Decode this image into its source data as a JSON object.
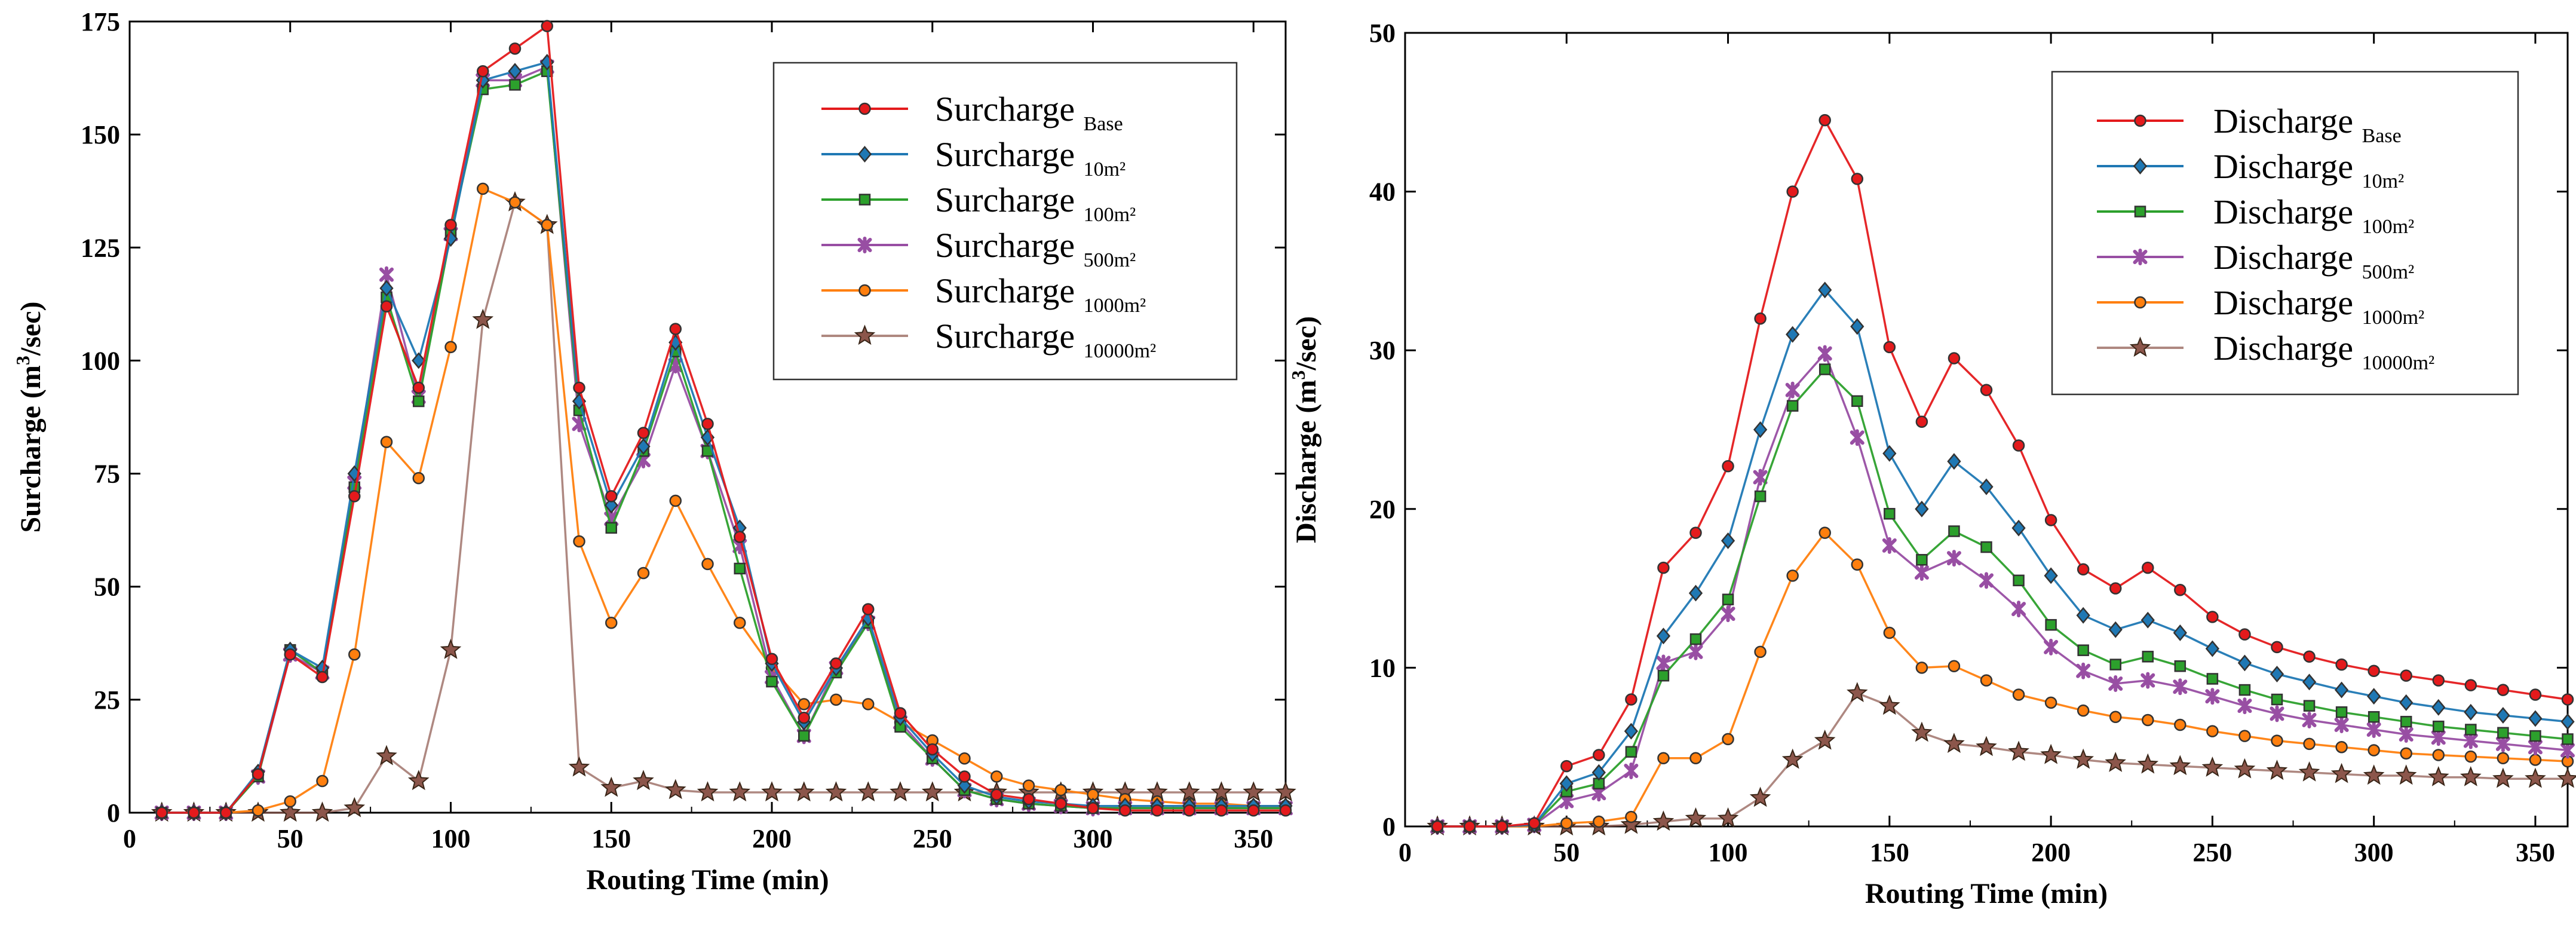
{
  "chart_data": [
    {
      "type": "line",
      "title": "",
      "xlabel": "Routing Time (min)",
      "ylabel": "Surcharge (m3/sec)",
      "ylabel_parts": {
        "pre": "Surcharge (m",
        "sup": "3",
        "post": "/sec)"
      },
      "xlim": [
        0,
        360
      ],
      "ylim": [
        0,
        175
      ],
      "xticks": [
        0,
        50,
        100,
        150,
        200,
        250,
        300,
        350
      ],
      "yticks": [
        0,
        25,
        50,
        75,
        100,
        125,
        150,
        175
      ],
      "grid": false,
      "legend_position": "top-right",
      "x": [
        10,
        20,
        30,
        40,
        50,
        60,
        70,
        80,
        90,
        100,
        110,
        120,
        130,
        140,
        150,
        160,
        170,
        180,
        190,
        200,
        210,
        220,
        230,
        240,
        250,
        260,
        270,
        280,
        290,
        300,
        310,
        320,
        330,
        340,
        350,
        360
      ],
      "series": [
        {
          "name": "Surcharge Base",
          "main": "Surcharge",
          "sub": "Base",
          "color": "#e41a1c",
          "marker": "circle",
          "values": [
            0,
            0,
            0,
            8.5,
            35,
            30,
            70,
            112,
            94,
            130,
            164,
            169,
            174,
            94,
            70,
            84,
            107,
            86,
            61,
            34,
            21,
            33,
            45,
            22,
            14,
            8,
            4,
            3,
            2,
            1,
            0.5,
            0.5,
            0.5,
            0.5,
            0.5,
            0.5
          ]
        },
        {
          "name": "Surcharge 10m2",
          "main": "Surcharge",
          "sub": "10m²",
          "color": "#1f78b4",
          "marker": "diamond",
          "values": [
            0,
            0,
            0,
            9,
            36,
            32,
            75,
            116,
            100,
            127,
            162,
            164,
            166,
            91,
            68,
            81,
            104,
            83,
            63,
            33,
            20,
            32,
            43,
            21,
            13,
            6,
            3.5,
            2.5,
            2,
            1.5,
            1.5,
            1.5,
            1.5,
            1.5,
            1.5,
            1.5
          ]
        },
        {
          "name": "Surcharge 100m2",
          "main": "Surcharge",
          "sub": "100m²",
          "color": "#2ca02c",
          "marker": "square",
          "values": [
            0,
            0,
            0,
            8,
            36,
            31,
            72,
            114,
            91,
            128,
            160,
            161,
            164,
            89,
            63,
            80,
            102,
            80,
            54,
            29,
            17,
            31,
            42,
            19,
            12,
            5,
            3,
            2,
            1.5,
            1,
            1,
            1,
            1,
            1,
            1,
            1
          ]
        },
        {
          "name": "Surcharge 500m2",
          "main": "Surcharge",
          "sub": "500m²",
          "color": "#984ea3",
          "marker": "x",
          "values": [
            0,
            0,
            0,
            8,
            35,
            31,
            73,
            119,
            92,
            128,
            162,
            162,
            165,
            86,
            65,
            78,
            99,
            80,
            59,
            30,
            17,
            32,
            42,
            20,
            12,
            5,
            3,
            2,
            1.5,
            1,
            1,
            1,
            1,
            1,
            1,
            1
          ]
        },
        {
          "name": "Surcharge 1000m2",
          "main": "Surcharge",
          "sub": "1000m²",
          "color": "#ff7f0e",
          "marker": "circle",
          "values": [
            0,
            0,
            0,
            0.5,
            2.5,
            7,
            35,
            82,
            74,
            103,
            138,
            135,
            130,
            60,
            42,
            53,
            69,
            55,
            42,
            32,
            24,
            25,
            24,
            20,
            16,
            12,
            8,
            6,
            5,
            4,
            3,
            2.5,
            2,
            2,
            1.5,
            1.5
          ]
        },
        {
          "name": "Surcharge 10000m2",
          "main": "Surcharge",
          "sub": "10000m²",
          "color": "#8c564b",
          "marker": "star",
          "values": [
            0,
            0,
            0,
            0,
            0,
            0,
            1,
            12.5,
            7,
            36,
            109,
            135,
            130,
            10,
            5.5,
            7,
            5,
            4.5,
            4.5,
            4.5,
            4.5,
            4.5,
            4.5,
            4.5,
            4.5,
            4.5,
            4.5,
            4.5,
            4.5,
            4.5,
            4.5,
            4.5,
            4.5,
            4.5,
            4.5,
            4.5
          ]
        }
      ]
    },
    {
      "type": "line",
      "title": "",
      "xlabel": "Routing Time (min)",
      "ylabel": "Discharge (m3/sec)",
      "ylabel_parts": {
        "pre": "Discharge (m",
        "sup": "3",
        "post": "/sec)"
      },
      "xlim": [
        0,
        360
      ],
      "ylim": [
        0,
        50
      ],
      "xticks": [
        0,
        50,
        100,
        150,
        200,
        250,
        300,
        350
      ],
      "yticks": [
        0,
        10,
        20,
        30,
        40,
        50
      ],
      "grid": false,
      "legend_position": "top-right",
      "x": [
        10,
        20,
        30,
        40,
        50,
        60,
        70,
        80,
        90,
        100,
        110,
        120,
        130,
        140,
        150,
        160,
        170,
        180,
        190,
        200,
        210,
        220,
        230,
        240,
        250,
        260,
        270,
        280,
        290,
        300,
        310,
        320,
        330,
        340,
        350,
        360
      ],
      "series": [
        {
          "name": "Discharge Base",
          "main": "Discharge",
          "sub": "Base",
          "color": "#e41a1c",
          "marker": "circle",
          "values": [
            0,
            0,
            0,
            0.2,
            3.8,
            4.5,
            8,
            16.3,
            18.5,
            22.7,
            32,
            40,
            44.5,
            40.8,
            30.2,
            25.5,
            29.5,
            27.5,
            24,
            19.3,
            16.2,
            15,
            16.3,
            14.9,
            13.2,
            12.1,
            11.3,
            10.7,
            10.2,
            9.8,
            9.5,
            9.2,
            8.9,
            8.6,
            8.3,
            8
          ]
        },
        {
          "name": "Discharge 10m2",
          "main": "Discharge",
          "sub": "10m²",
          "color": "#1f78b4",
          "marker": "diamond",
          "values": [
            0,
            0,
            0,
            0.1,
            2.7,
            3.4,
            6,
            12,
            14.7,
            18,
            25,
            31,
            33.8,
            31.5,
            23.5,
            20,
            23,
            21.4,
            18.8,
            15.8,
            13.3,
            12.4,
            13,
            12.2,
            11.2,
            10.3,
            9.6,
            9.1,
            8.6,
            8.2,
            7.8,
            7.5,
            7.2,
            7,
            6.8,
            6.6
          ]
        },
        {
          "name": "Discharge 100m2",
          "main": "Discharge",
          "sub": "100m²",
          "color": "#2ca02c",
          "marker": "square",
          "values": [
            0,
            0,
            0,
            0.1,
            2.2,
            2.7,
            4.7,
            9.5,
            11.8,
            14.3,
            20.8,
            26.5,
            28.8,
            26.8,
            19.7,
            16.8,
            18.6,
            17.6,
            15.5,
            12.7,
            11.1,
            10.2,
            10.7,
            10.1,
            9.3,
            8.6,
            8,
            7.6,
            7.2,
            6.9,
            6.6,
            6.3,
            6.1,
            5.9,
            5.7,
            5.5
          ]
        },
        {
          "name": "Discharge 500m2",
          "main": "Discharge",
          "sub": "500m²",
          "color": "#984ea3",
          "marker": "x",
          "values": [
            0,
            0,
            0,
            0.1,
            1.6,
            2.1,
            3.5,
            10.3,
            11,
            13.4,
            22,
            27.5,
            29.8,
            24.5,
            17.7,
            16,
            16.9,
            15.5,
            13.7,
            11.3,
            9.8,
            9,
            9.2,
            8.8,
            8.2,
            7.6,
            7.1,
            6.7,
            6.4,
            6.1,
            5.8,
            5.6,
            5.4,
            5.2,
            5,
            4.8
          ]
        },
        {
          "name": "Discharge 1000m2",
          "main": "Discharge",
          "sub": "1000m²",
          "color": "#ff7f0e",
          "marker": "circle",
          "values": [
            0,
            0,
            0,
            0,
            0.2,
            0.3,
            0.6,
            4.3,
            4.3,
            5.5,
            11,
            15.8,
            18.5,
            16.5,
            12.2,
            10,
            10.1,
            9.2,
            8.3,
            7.8,
            7.3,
            6.9,
            6.7,
            6.4,
            6,
            5.7,
            5.4,
            5.2,
            5,
            4.8,
            4.6,
            4.5,
            4.4,
            4.3,
            4.2,
            4.1
          ]
        },
        {
          "name": "Discharge 10000m2",
          "main": "Discharge",
          "sub": "10000m²",
          "color": "#8c564b",
          "marker": "star",
          "values": [
            0,
            0,
            0,
            0,
            0,
            0,
            0.1,
            0.3,
            0.5,
            0.5,
            1.8,
            4.2,
            5.4,
            8.4,
            7.6,
            5.9,
            5.2,
            5,
            4.7,
            4.5,
            4.2,
            4,
            3.9,
            3.8,
            3.7,
            3.6,
            3.5,
            3.4,
            3.3,
            3.2,
            3.2,
            3.1,
            3.1,
            3,
            3,
            3
          ]
        }
      ]
    }
  ]
}
